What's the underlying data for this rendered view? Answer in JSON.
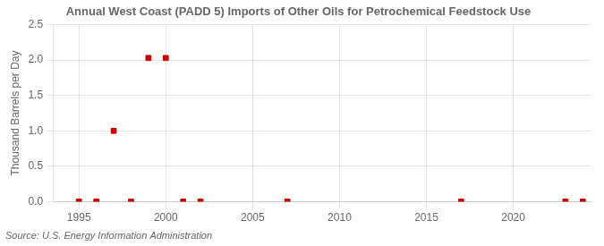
{
  "chart_data": {
    "type": "scatter",
    "title": "Annual West Coast (PADD 5) Imports of Other Oils for Petrochemical Feedstock Use",
    "ylabel": "Thousand Barrels per Day",
    "source": "Source: U.S. Energy Information Administration",
    "x": [
      1995,
      1996,
      1997,
      1998,
      1999,
      2000,
      2001,
      2002,
      2007,
      2017,
      2023,
      2024
    ],
    "values": [
      0.0,
      0.0,
      1.0,
      0.0,
      2.03,
      2.03,
      0.0,
      0.0,
      0.0,
      0.0,
      0.0,
      0.0
    ],
    "color": "#cc0000",
    "marker": "square",
    "xlim": [
      1993.5,
      2024.5
    ],
    "xticks": [
      1995,
      2000,
      2005,
      2010,
      2015,
      2020
    ],
    "ylim": [
      0,
      2.5
    ],
    "yticks": [
      {
        "value": 0.0,
        "label": "0.0"
      },
      {
        "value": 0.5,
        "label": "0.5"
      },
      {
        "value": 1.0,
        "label": "1.0"
      },
      {
        "value": 1.5,
        "label": "1.5"
      },
      {
        "value": 2.0,
        "label": "2.0"
      },
      {
        "value": 2.5,
        "label": "2.5"
      }
    ],
    "grid": true
  }
}
